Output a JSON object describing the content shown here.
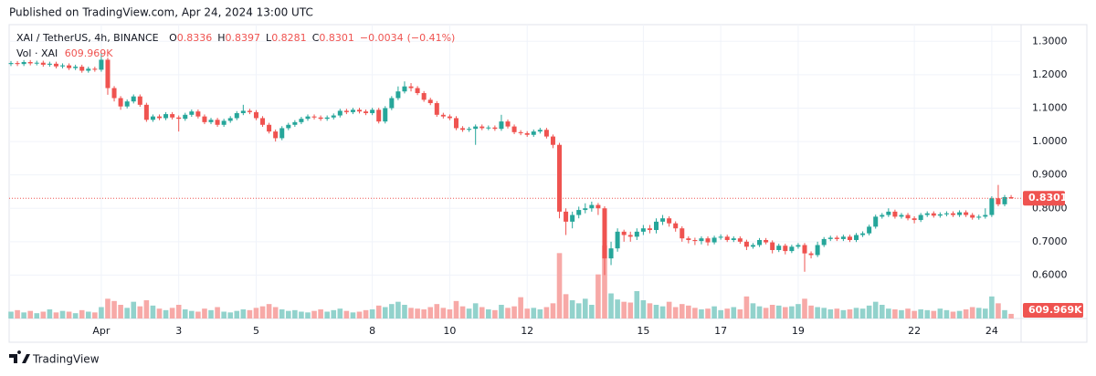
{
  "header": {
    "published": "Published on TradingView.com, Apr 24, 2024 13:00 UTC"
  },
  "footer": {
    "brand": "TradingView"
  },
  "chart_data": {
    "type": "candlestick",
    "title": "XAI / TetherUS, 4h, BINANCE",
    "ohlc_letters": [
      "O",
      "H",
      "L",
      "C"
    ],
    "change": {
      "value": -0.0034,
      "label": "−0.0034"
    },
    "change_pct": {
      "value": -0.41,
      "label": "(−0.41%)"
    },
    "up_color": "#26a69a",
    "down_color": "#ef5350",
    "volume_up_color": "#92d2cc",
    "volume_down_color": "#f7a9a7",
    "ylim": [
      0.47,
      1.35
    ],
    "yticks": [
      {
        "value": 1.3,
        "label": "1.3000"
      },
      {
        "value": 1.2,
        "label": "1.2000"
      },
      {
        "value": 1.1,
        "label": "1.1000"
      },
      {
        "value": 1.0,
        "label": "1.0000"
      },
      {
        "value": 0.9,
        "label": "0.9000"
      },
      {
        "value": 0.8,
        "label": "0.8000"
      },
      {
        "value": 0.7,
        "label": "0.7000"
      },
      {
        "value": 0.6,
        "label": "0.6000"
      }
    ],
    "xticks": [
      {
        "value": 14,
        "label": "Apr"
      },
      {
        "value": 26,
        "label": "3"
      },
      {
        "value": 38,
        "label": "5"
      },
      {
        "value": 56,
        "label": "8"
      },
      {
        "value": 68,
        "label": "10"
      },
      {
        "value": 80,
        "label": "12"
      },
      {
        "value": 98,
        "label": "15"
      },
      {
        "value": 110,
        "label": "17"
      },
      {
        "value": 122,
        "label": "19"
      },
      {
        "value": 140,
        "label": "22"
      },
      {
        "value": 152,
        "label": "24"
      }
    ],
    "grid": true,
    "ohlc": [
      [
        1.232,
        1.241,
        1.226,
        1.235
      ],
      [
        1.235,
        1.241,
        1.226,
        1.232
      ],
      [
        1.232,
        1.244,
        1.226,
        1.238
      ],
      [
        1.238,
        1.244,
        1.228,
        1.234
      ],
      [
        1.234,
        1.242,
        1.228,
        1.236
      ],
      [
        1.236,
        1.242,
        1.224,
        1.23
      ],
      [
        1.23,
        1.239,
        1.224,
        1.233
      ],
      [
        1.233,
        1.239,
        1.219,
        1.225
      ],
      [
        1.225,
        1.234,
        1.219,
        1.228
      ],
      [
        1.228,
        1.234,
        1.214,
        1.22
      ],
      [
        1.22,
        1.23,
        1.214,
        1.224
      ],
      [
        1.224,
        1.23,
        1.206,
        1.212
      ],
      [
        1.212,
        1.224,
        1.206,
        1.218
      ],
      [
        1.218,
        1.224,
        1.209,
        1.215
      ],
      [
        1.215,
        1.265,
        1.209,
        1.245
      ],
      [
        1.245,
        1.251,
        1.14,
        1.16
      ],
      [
        1.16,
        1.166,
        1.12,
        1.13
      ],
      [
        1.13,
        1.136,
        1.095,
        1.105
      ],
      [
        1.105,
        1.126,
        1.099,
        1.12
      ],
      [
        1.12,
        1.141,
        1.114,
        1.135
      ],
      [
        1.135,
        1.141,
        1.104,
        1.11
      ],
      [
        1.11,
        1.116,
        1.059,
        1.065
      ],
      [
        1.065,
        1.081,
        1.059,
        1.075
      ],
      [
        1.075,
        1.081,
        1.064,
        1.07
      ],
      [
        1.07,
        1.088,
        1.064,
        1.082
      ],
      [
        1.082,
        1.088,
        1.066,
        1.072
      ],
      [
        1.072,
        1.078,
        1.03,
        1.068
      ],
      [
        1.068,
        1.086,
        1.062,
        1.08
      ],
      [
        1.08,
        1.096,
        1.074,
        1.09
      ],
      [
        1.09,
        1.096,
        1.069,
        1.075
      ],
      [
        1.075,
        1.081,
        1.052,
        1.058
      ],
      [
        1.058,
        1.071,
        1.052,
        1.065
      ],
      [
        1.065,
        1.071,
        1.044,
        1.05
      ],
      [
        1.05,
        1.068,
        1.044,
        1.062
      ],
      [
        1.062,
        1.076,
        1.056,
        1.07
      ],
      [
        1.07,
        1.091,
        1.064,
        1.085
      ],
      [
        1.085,
        1.11,
        1.079,
        1.092
      ],
      [
        1.092,
        1.098,
        1.082,
        1.088
      ],
      [
        1.088,
        1.094,
        1.064,
        1.07
      ],
      [
        1.07,
        1.076,
        1.044,
        1.05
      ],
      [
        1.05,
        1.056,
        1.024,
        1.03
      ],
      [
        1.03,
        1.036,
        1.0,
        1.01
      ],
      [
        1.01,
        1.046,
        1.004,
        1.04
      ],
      [
        1.04,
        1.056,
        1.034,
        1.05
      ],
      [
        1.05,
        1.064,
        1.044,
        1.058
      ],
      [
        1.058,
        1.074,
        1.052,
        1.068
      ],
      [
        1.068,
        1.081,
        1.062,
        1.075
      ],
      [
        1.075,
        1.081,
        1.066,
        1.072
      ],
      [
        1.072,
        1.078,
        1.062,
        1.068
      ],
      [
        1.068,
        1.078,
        1.062,
        1.072
      ],
      [
        1.072,
        1.084,
        1.066,
        1.078
      ],
      [
        1.078,
        1.098,
        1.072,
        1.092
      ],
      [
        1.092,
        1.098,
        1.082,
        1.088
      ],
      [
        1.088,
        1.101,
        1.082,
        1.095
      ],
      [
        1.095,
        1.101,
        1.084,
        1.09
      ],
      [
        1.09,
        1.096,
        1.079,
        1.085
      ],
      [
        1.085,
        1.101,
        1.079,
        1.095
      ],
      [
        1.095,
        1.101,
        1.054,
        1.06
      ],
      [
        1.06,
        1.106,
        1.054,
        1.1
      ],
      [
        1.1,
        1.136,
        1.094,
        1.13
      ],
      [
        1.13,
        1.165,
        1.124,
        1.15
      ],
      [
        1.15,
        1.18,
        1.144,
        1.165
      ],
      [
        1.165,
        1.175,
        1.15,
        1.16
      ],
      [
        1.16,
        1.166,
        1.139,
        1.145
      ],
      [
        1.145,
        1.151,
        1.119,
        1.125
      ],
      [
        1.125,
        1.131,
        1.109,
        1.115
      ],
      [
        1.115,
        1.121,
        1.074,
        1.08
      ],
      [
        1.08,
        1.086,
        1.069,
        1.075
      ],
      [
        1.075,
        1.081,
        1.064,
        1.07
      ],
      [
        1.07,
        1.076,
        1.034,
        1.04
      ],
      [
        1.04,
        1.046,
        1.029,
        1.035
      ],
      [
        1.035,
        1.044,
        1.029,
        1.038
      ],
      [
        1.038,
        1.051,
        0.99,
        1.045
      ],
      [
        1.045,
        1.051,
        1.034,
        1.04
      ],
      [
        1.04,
        1.048,
        1.034,
        1.042
      ],
      [
        1.042,
        1.048,
        1.032,
        1.038
      ],
      [
        1.038,
        1.08,
        1.032,
        1.06
      ],
      [
        1.06,
        1.066,
        1.039,
        1.045
      ],
      [
        1.045,
        1.051,
        1.022,
        1.028
      ],
      [
        1.028,
        1.034,
        1.019,
        1.025
      ],
      [
        1.025,
        1.031,
        1.014,
        1.02
      ],
      [
        1.02,
        1.036,
        1.014,
        1.03
      ],
      [
        1.03,
        1.041,
        1.024,
        1.035
      ],
      [
        1.035,
        1.041,
        1.009,
        1.015
      ],
      [
        1.015,
        1.021,
        0.98,
        0.99
      ],
      [
        0.99,
        0.996,
        0.77,
        0.79
      ],
      [
        0.79,
        0.8,
        0.72,
        0.76
      ],
      [
        0.76,
        0.79,
        0.74,
        0.78
      ],
      [
        0.78,
        0.805,
        0.77,
        0.795
      ],
      [
        0.795,
        0.815,
        0.785,
        0.8
      ],
      [
        0.8,
        0.82,
        0.79,
        0.81
      ],
      [
        0.81,
        0.816,
        0.78,
        0.8
      ],
      [
        0.8,
        0.806,
        0.6,
        0.65
      ],
      [
        0.65,
        0.7,
        0.63,
        0.68
      ],
      [
        0.68,
        0.74,
        0.67,
        0.73
      ],
      [
        0.73,
        0.736,
        0.7,
        0.72
      ],
      [
        0.72,
        0.73,
        0.7,
        0.715
      ],
      [
        0.715,
        0.74,
        0.705,
        0.73
      ],
      [
        0.73,
        0.75,
        0.72,
        0.74
      ],
      [
        0.74,
        0.75,
        0.725,
        0.735
      ],
      [
        0.735,
        0.77,
        0.725,
        0.76
      ],
      [
        0.76,
        0.78,
        0.75,
        0.77
      ],
      [
        0.77,
        0.776,
        0.745,
        0.755
      ],
      [
        0.755,
        0.761,
        0.73,
        0.74
      ],
      [
        0.74,
        0.746,
        0.7,
        0.71
      ],
      [
        0.71,
        0.716,
        0.695,
        0.705
      ],
      [
        0.705,
        0.712,
        0.69,
        0.702
      ],
      [
        0.702,
        0.716,
        0.692,
        0.71
      ],
      [
        0.71,
        0.716,
        0.688,
        0.698
      ],
      [
        0.698,
        0.718,
        0.692,
        0.712
      ],
      [
        0.712,
        0.722,
        0.706,
        0.715
      ],
      [
        0.715,
        0.721,
        0.699,
        0.705
      ],
      [
        0.705,
        0.716,
        0.699,
        0.71
      ],
      [
        0.71,
        0.716,
        0.694,
        0.7
      ],
      [
        0.7,
        0.706,
        0.675,
        0.685
      ],
      [
        0.685,
        0.696,
        0.679,
        0.69
      ],
      [
        0.69,
        0.711,
        0.684,
        0.705
      ],
      [
        0.705,
        0.711,
        0.692,
        0.698
      ],
      [
        0.698,
        0.704,
        0.665,
        0.675
      ],
      [
        0.675,
        0.694,
        0.669,
        0.688
      ],
      [
        0.688,
        0.694,
        0.662,
        0.672
      ],
      [
        0.672,
        0.691,
        0.666,
        0.685
      ],
      [
        0.685,
        0.696,
        0.679,
        0.69
      ],
      [
        0.69,
        0.696,
        0.61,
        0.665
      ],
      [
        0.665,
        0.671,
        0.65,
        0.66
      ],
      [
        0.66,
        0.7,
        0.654,
        0.69
      ],
      [
        0.69,
        0.714,
        0.684,
        0.708
      ],
      [
        0.708,
        0.718,
        0.702,
        0.712
      ],
      [
        0.712,
        0.718,
        0.702,
        0.708
      ],
      [
        0.708,
        0.721,
        0.702,
        0.715
      ],
      [
        0.715,
        0.721,
        0.699,
        0.705
      ],
      [
        0.705,
        0.726,
        0.699,
        0.72
      ],
      [
        0.72,
        0.731,
        0.714,
        0.725
      ],
      [
        0.725,
        0.751,
        0.719,
        0.745
      ],
      [
        0.745,
        0.781,
        0.739,
        0.775
      ],
      [
        0.775,
        0.786,
        0.769,
        0.78
      ],
      [
        0.78,
        0.8,
        0.774,
        0.79
      ],
      [
        0.79,
        0.796,
        0.769,
        0.775
      ],
      [
        0.775,
        0.786,
        0.769,
        0.78
      ],
      [
        0.78,
        0.786,
        0.764,
        0.77
      ],
      [
        0.77,
        0.776,
        0.755,
        0.765
      ],
      [
        0.765,
        0.786,
        0.759,
        0.78
      ],
      [
        0.78,
        0.791,
        0.774,
        0.785
      ],
      [
        0.785,
        0.791,
        0.772,
        0.778
      ],
      [
        0.778,
        0.788,
        0.772,
        0.782
      ],
      [
        0.782,
        0.791,
        0.776,
        0.785
      ],
      [
        0.785,
        0.791,
        0.774,
        0.78
      ],
      [
        0.78,
        0.794,
        0.774,
        0.788
      ],
      [
        0.788,
        0.794,
        0.774,
        0.78
      ],
      [
        0.78,
        0.786,
        0.766,
        0.772
      ],
      [
        0.772,
        0.781,
        0.766,
        0.775
      ],
      [
        0.775,
        0.8,
        0.769,
        0.78
      ],
      [
        0.78,
        0.836,
        0.774,
        0.83
      ],
      [
        0.83,
        0.87,
        0.806,
        0.812
      ],
      [
        0.812,
        0.84,
        0.806,
        0.8336
      ],
      [
        0.8336,
        0.8397,
        0.8281,
        0.8301
      ]
    ],
    "volume": {
      "name": "Vol · XAI",
      "last_label": "609.969K",
      "ylim": [
        0,
        12000000
      ],
      "values": [
        900000,
        1100000,
        800000,
        1000000,
        700000,
        900000,
        1200000,
        800000,
        1000000,
        900000,
        700000,
        1100000,
        900000,
        800000,
        1500000,
        2600000,
        2300000,
        1800000,
        1400000,
        2200000,
        1600000,
        2400000,
        1700000,
        1300000,
        1100000,
        1400000,
        1800000,
        1200000,
        1000000,
        900000,
        1300000,
        1100000,
        1500000,
        900000,
        800000,
        1000000,
        1200000,
        1100000,
        1400000,
        1600000,
        1900000,
        1500000,
        1200000,
        1000000,
        1100000,
        900000,
        800000,
        1000000,
        1200000,
        900000,
        1100000,
        1300000,
        1000000,
        800000,
        900000,
        1100000,
        1200000,
        1700000,
        1500000,
        1900000,
        2200000,
        1800000,
        1400000,
        1300000,
        1200000,
        1500000,
        1900000,
        1400000,
        1200000,
        2300000,
        1600000,
        1300000,
        2000000,
        1500000,
        1200000,
        1100000,
        1800000,
        1400000,
        1600000,
        2800000,
        1300000,
        1400000,
        1200000,
        1500000,
        2000000,
        8600000,
        3200000,
        2400000,
        2000000,
        2600000,
        1800000,
        5800000,
        9600000,
        3300000,
        2500000,
        2200000,
        2100000,
        3600000,
        2400000,
        2000000,
        1800000,
        1600000,
        2200000,
        1500000,
        1900000,
        1700000,
        1400000,
        1200000,
        1300000,
        1600000,
        1100000,
        1300000,
        1500000,
        1200000,
        2900000,
        2000000,
        1600000,
        1400000,
        1800000,
        1700000,
        1500000,
        1600000,
        1900000,
        2600000,
        1700000,
        1500000,
        1400000,
        1200000,
        1300000,
        1100000,
        1200000,
        1400000,
        1300000,
        1700000,
        2200000,
        1800000,
        1300000,
        1200000,
        1100000,
        1300000,
        1000000,
        1200000,
        1100000,
        1000000,
        1300000,
        1100000,
        900000,
        1000000,
        1200000,
        1500000,
        1400000,
        1300000,
        2900000,
        2000000,
        1100000,
        609969
      ]
    }
  }
}
